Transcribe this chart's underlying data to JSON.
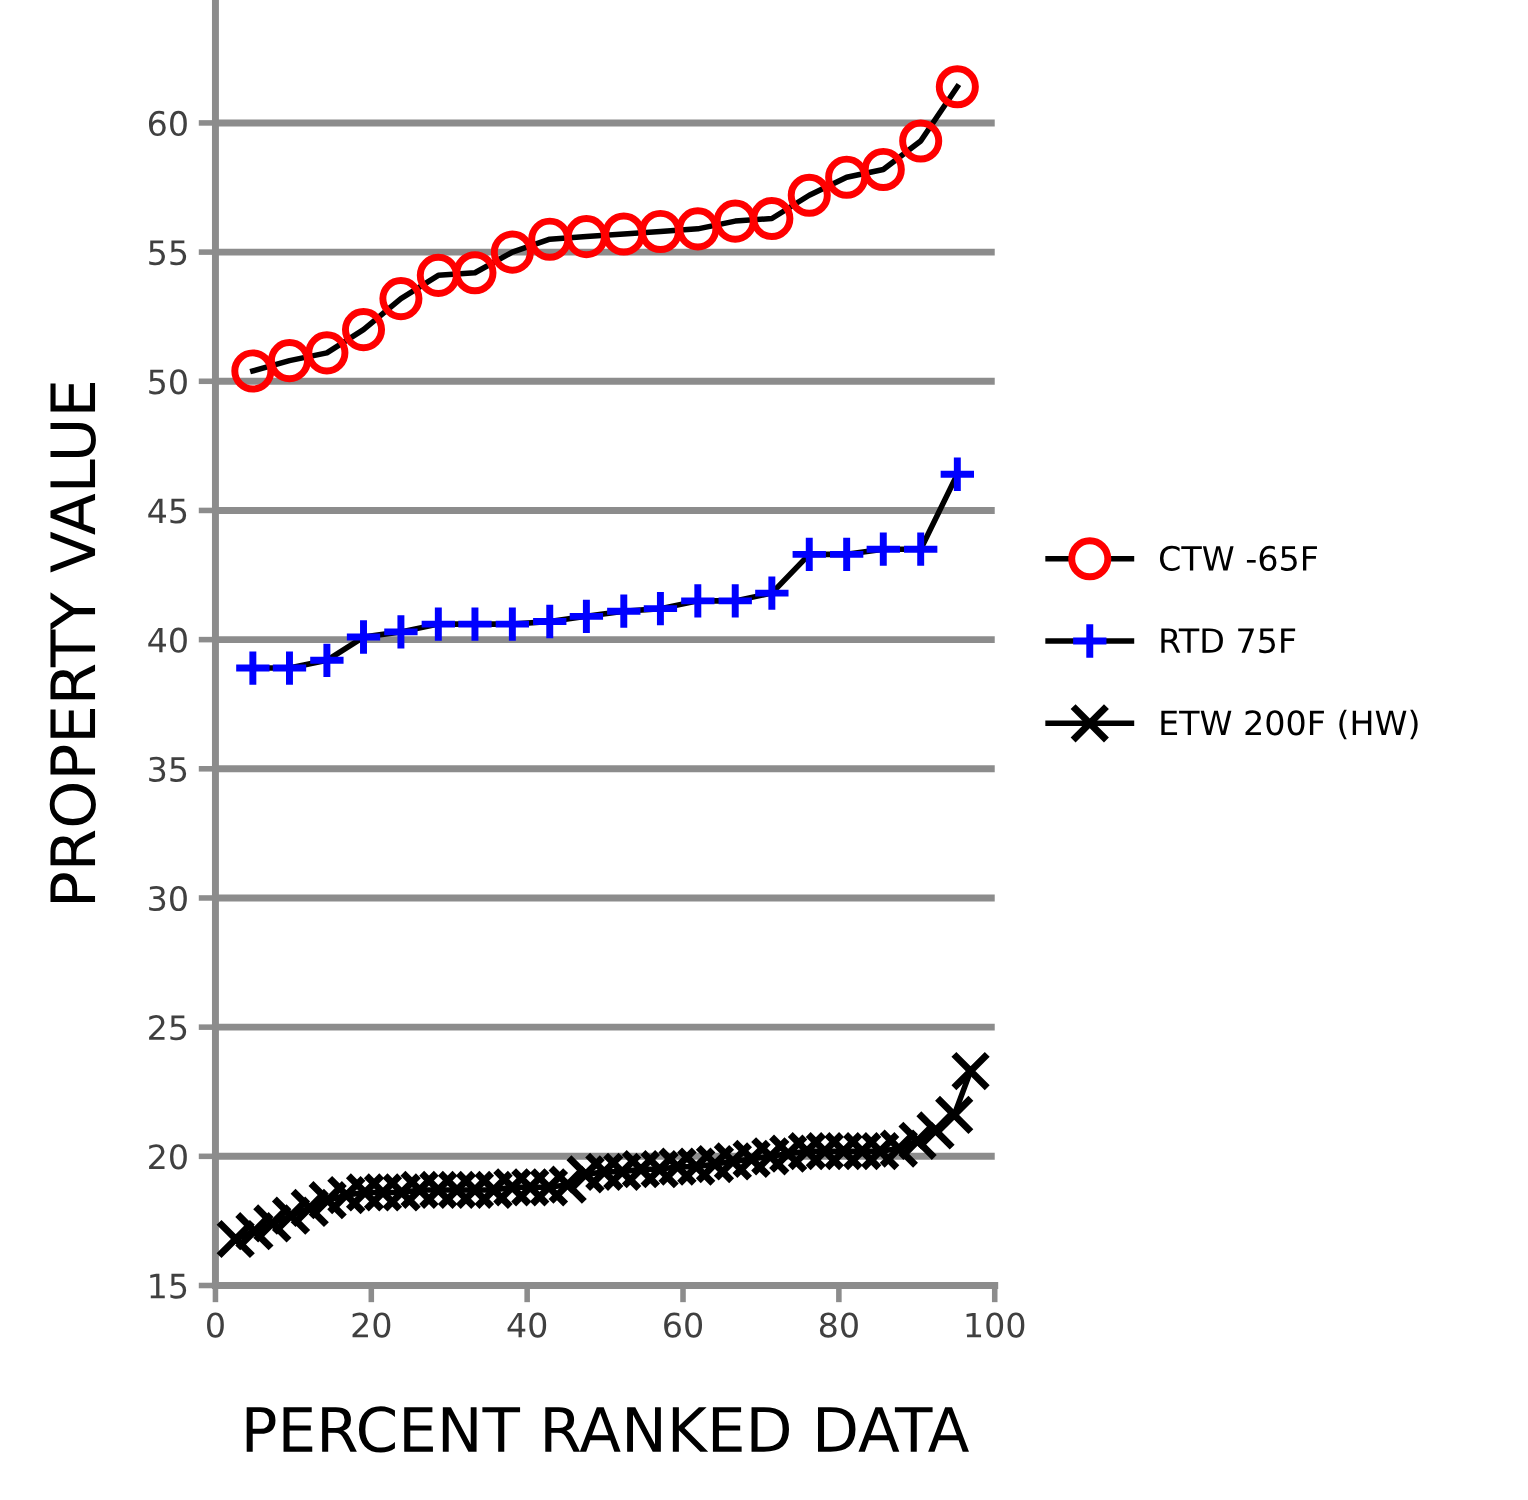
{
  "chart_data": {
    "type": "line",
    "xlabel": "PERCENT RANKED DATA",
    "ylabel": "PROPERTY VALUE",
    "xlim": [
      0,
      100
    ],
    "xticks": [
      0,
      20,
      40,
      60,
      80,
      100
    ],
    "ylim": [
      15,
      64.7
    ],
    "yticks": [
      15,
      20,
      25,
      30,
      35,
      40,
      45,
      50,
      55,
      60
    ],
    "grid": "y",
    "legend": "right",
    "line_style": "solid",
    "series": [
      {
        "name": "CTW -65F",
        "color": "#ff0000",
        "marker": "circle",
        "x": [
          4.8,
          9.5,
          14.3,
          19.0,
          23.8,
          28.6,
          33.3,
          38.1,
          42.9,
          47.6,
          52.4,
          57.1,
          61.9,
          66.7,
          71.4,
          76.2,
          81.0,
          85.7,
          90.5,
          95.2
        ],
        "values": [
          50.4,
          50.8,
          51.1,
          52.0,
          53.2,
          54.1,
          54.2,
          55.0,
          55.5,
          55.6,
          55.7,
          55.8,
          55.9,
          56.2,
          56.3,
          57.2,
          57.9,
          58.2,
          59.3,
          61.4
        ]
      },
      {
        "name": "RTD 75F",
        "color": "#0000ff",
        "marker": "plus",
        "x": [
          4.8,
          9.5,
          14.3,
          19.0,
          23.8,
          28.6,
          33.3,
          38.1,
          42.9,
          47.6,
          52.4,
          57.1,
          61.9,
          66.7,
          71.4,
          76.2,
          81.0,
          85.7,
          90.5,
          95.2
        ],
        "values": [
          38.9,
          38.9,
          39.2,
          40.1,
          40.3,
          40.6,
          40.6,
          40.6,
          40.7,
          40.9,
          41.1,
          41.2,
          41.5,
          41.5,
          41.8,
          43.3,
          43.3,
          43.5,
          43.5,
          46.4
        ]
      },
      {
        "name": "ETW 200F (HW)",
        "color": "#000000",
        "marker": "cross",
        "x": [
          2.6,
          5.0,
          7.3,
          9.7,
          12.1,
          14.4,
          16.8,
          19.2,
          21.5,
          23.9,
          26.2,
          28.6,
          31.0,
          33.3,
          35.7,
          38.1,
          40.4,
          42.8,
          45.2,
          47.5,
          49.9,
          52.2,
          54.6,
          57.0,
          59.3,
          61.7,
          64.1,
          66.4,
          68.8,
          71.2,
          73.5,
          75.9,
          78.2,
          80.6,
          83.0,
          85.3,
          87.7,
          90.1,
          92.4,
          94.8,
          96.9
        ],
        "values": [
          16.8,
          17.1,
          17.4,
          17.7,
          18.0,
          18.3,
          18.5,
          18.6,
          18.6,
          18.6,
          18.7,
          18.7,
          18.7,
          18.7,
          18.7,
          18.8,
          18.8,
          18.8,
          18.9,
          19.3,
          19.4,
          19.4,
          19.5,
          19.5,
          19.6,
          19.6,
          19.7,
          19.8,
          19.9,
          20.0,
          20.1,
          20.2,
          20.2,
          20.2,
          20.2,
          20.2,
          20.3,
          20.6,
          21.0,
          21.6,
          23.3
        ]
      }
    ]
  }
}
